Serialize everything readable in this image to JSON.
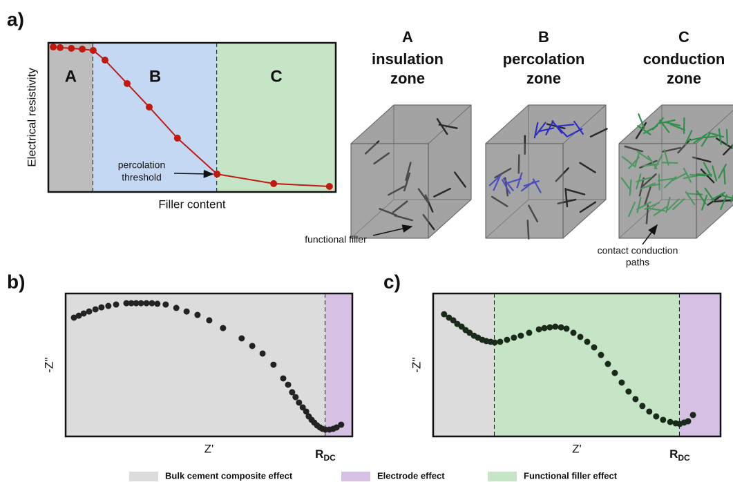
{
  "chart_data": [
    {
      "type": "line",
      "panel_label": "a)",
      "x_label": "Filler content",
      "y_label": "Electrical resistivity",
      "xlim": [
        0,
        100
      ],
      "ylim": [
        0,
        100
      ],
      "zones": [
        {
          "label": "A",
          "start": 0,
          "end": 15.6,
          "color": "#bdbdbd"
        },
        {
          "label": "B",
          "start": 15.6,
          "end": 58.7,
          "color": "#c5d8f3"
        },
        {
          "label": "C",
          "start": 58.7,
          "end": 100,
          "color": "#c6e5c6"
        }
      ],
      "annotation": [
        "percolation",
        "threshold"
      ],
      "series": [
        {
          "color": "#c0190f",
          "x": [
            1.7,
            4.1,
            8.0,
            11.8,
            15.6,
            19.7,
            27.4,
            35.1,
            44.9,
            58.7,
            78.4,
            97.8
          ],
          "values": [
            97.2,
            96.8,
            96.3,
            95.8,
            94.9,
            88.4,
            72.7,
            56.9,
            36.1,
            12.0,
            5.6,
            3.7
          ]
        }
      ]
    },
    {
      "type": "scatter",
      "panel_label": "b)",
      "x_label": "Z'",
      "y_label": "-Z''",
      "xlim": [
        0,
        100
      ],
      "ylim": [
        0,
        100
      ],
      "zones": [
        {
          "start": 0,
          "end": 90.6,
          "color": "#dcdcdc"
        },
        {
          "start": 90.6,
          "end": 100,
          "color": "#d6c1e4"
        }
      ],
      "marker_label": {
        "main": "R",
        "sub": "DC"
      },
      "series": [
        {
          "color": "#222222",
          "x": [
            2.9,
            4.6,
            6.3,
            8.2,
            10.4,
            12.5,
            14.9,
            17.6,
            21.2,
            22.9,
            24.6,
            26.3,
            28.2,
            30.1,
            32.0,
            34.9,
            38.6,
            42.2,
            46.0,
            50.1,
            54.9,
            61.4,
            65.1,
            68.7,
            72.5,
            75.9,
            77.6,
            79.0,
            80.2,
            81.4,
            82.7,
            83.9,
            84.8,
            85.8,
            86.7,
            87.7,
            88.7,
            89.6,
            90.6,
            92.0,
            93.3,
            94.5,
            96.1
          ],
          "values": [
            83.1,
            84.5,
            86.0,
            87.4,
            88.9,
            90.3,
            91.3,
            92.3,
            93.2,
            93.2,
            93.2,
            93.2,
            93.2,
            93.2,
            92.8,
            92.3,
            89.9,
            87.4,
            85.0,
            81.2,
            75.8,
            68.6,
            63.3,
            58.0,
            50.2,
            40.6,
            36.2,
            30.9,
            27.5,
            23.7,
            20.3,
            17.4,
            14.0,
            11.6,
            9.7,
            7.7,
            6.3,
            5.3,
            4.8,
            4.8,
            5.3,
            6.3,
            8.2
          ]
        }
      ]
    },
    {
      "type": "scatter",
      "panel_label": "c)",
      "x_label": "Z'",
      "y_label": "-Z''",
      "xlim": [
        0,
        100
      ],
      "ylim": [
        0,
        100
      ],
      "zones": [
        {
          "start": 0,
          "end": 21.4,
          "color": "#dcdcdc"
        },
        {
          "start": 21.4,
          "end": 85.8,
          "color": "#c6e5c6"
        },
        {
          "start": 85.8,
          "end": 100,
          "color": "#d6c1e4"
        }
      ],
      "marker_label": {
        "main": "R",
        "sub": "DC"
      },
      "series": [
        {
          "color": "#1a2a1a",
          "x": [
            3.8,
            5.5,
            7.0,
            8.4,
            9.9,
            11.3,
            12.7,
            14.2,
            15.6,
            17.1,
            18.5,
            20.0,
            21.4,
            23.3,
            25.7,
            28.1,
            30.5,
            33.4,
            36.8,
            38.7,
            40.6,
            42.5,
            44.5,
            46.4,
            48.8,
            51.2,
            53.6,
            56.0,
            58.4,
            60.8,
            63.2,
            65.6,
            68.0,
            70.4,
            72.8,
            75.2,
            77.6,
            80.0,
            82.5,
            84.4,
            85.8,
            87.3,
            88.7,
            90.4
          ],
          "values": [
            85.5,
            83.1,
            81.2,
            78.7,
            76.8,
            74.4,
            72.5,
            70.5,
            69.1,
            67.6,
            66.7,
            66.2,
            65.7,
            66.2,
            67.6,
            69.1,
            70.5,
            72.5,
            74.9,
            75.8,
            76.3,
            76.8,
            76.3,
            75.4,
            72.5,
            69.6,
            66.2,
            62.3,
            57.0,
            50.7,
            44.4,
            37.7,
            31.4,
            26.1,
            21.3,
            17.4,
            14.0,
            11.6,
            10.1,
            9.2,
            8.7,
            9.7,
            10.6,
            15.0
          ]
        }
      ]
    }
  ],
  "diagram": {
    "columns": [
      {
        "letter": "A",
        "lines": [
          "insulation",
          "zone"
        ]
      },
      {
        "letter": "B",
        "lines": [
          "percolation",
          "zone"
        ]
      },
      {
        "letter": "C",
        "lines": [
          "conduction",
          "zone"
        ]
      }
    ],
    "callouts": [
      [
        "functional filler"
      ],
      [
        "contact conduction",
        "paths"
      ]
    ]
  },
  "legend": [
    {
      "label": "Bulk cement composite effect",
      "color": "#dcdcdc"
    },
    {
      "label": "Electrode effect",
      "color": "#d6c1e4"
    },
    {
      "label": "Functional filler effect",
      "color": "#c6e5c6"
    }
  ]
}
